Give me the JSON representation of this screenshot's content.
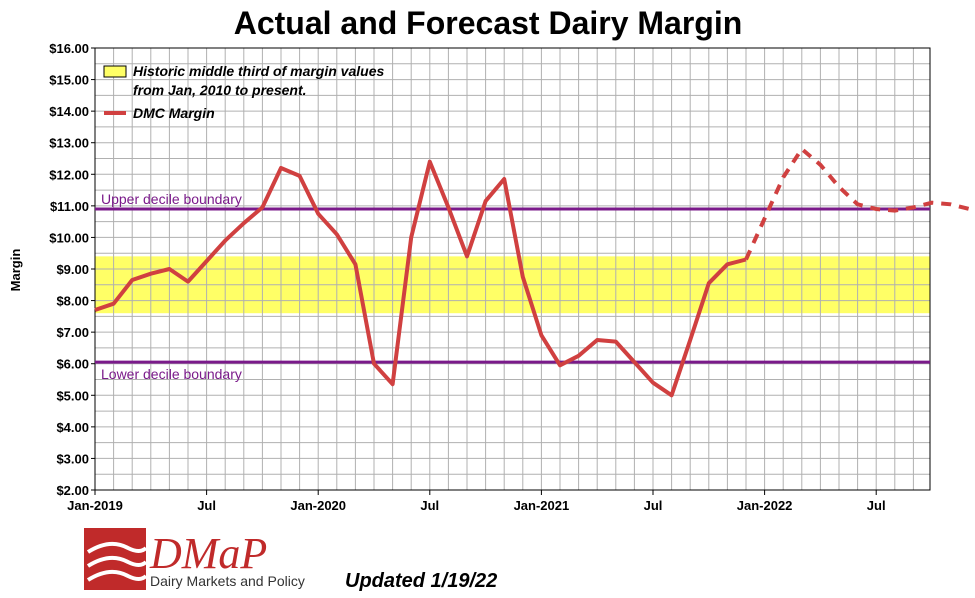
{
  "chart_data": {
    "type": "line",
    "title": "Actual and Forecast Dairy Margin",
    "ylabel": "Margin",
    "xlabel": "",
    "ylim": [
      2,
      16
    ],
    "y_ticks": [
      "$2.00",
      "$3.00",
      "$4.00",
      "$5.00",
      "$6.00",
      "$7.00",
      "$8.00",
      "$9.00",
      "$10.00",
      "$11.00",
      "$12.00",
      "$13.00",
      "$14.00",
      "$15.00",
      "$16.00"
    ],
    "x_ticks": [
      "Jan-2019",
      "Jul",
      "Jan-2020",
      "Jul",
      "Jan-2021",
      "Jul",
      "Jan-2022",
      "Jul"
    ],
    "grid": true,
    "legend_position": "top-left",
    "band": {
      "label": "Historic middle third of margin values",
      "label2": "from Jan, 2010 to present.",
      "range": [
        7.6,
        9.4
      ],
      "color": "#ffff66"
    },
    "upper_decile": {
      "label": "Upper decile boundary",
      "value": 10.9
    },
    "lower_decile": {
      "label": "Lower decile boundary",
      "value": 6.05
    },
    "series": [
      {
        "name": "DMC Margin",
        "color": "#d04040",
        "actual": {
          "x": [
            "2019-01",
            "2019-02",
            "2019-03",
            "2019-04",
            "2019-05",
            "2019-06",
            "2019-07",
            "2019-08",
            "2019-09",
            "2019-10",
            "2019-11",
            "2019-12",
            "2020-01",
            "2020-02",
            "2020-03",
            "2020-04",
            "2020-05",
            "2020-06",
            "2020-07",
            "2020-08",
            "2020-09",
            "2020-10",
            "2020-11",
            "2020-12",
            "2021-01",
            "2021-02",
            "2021-03",
            "2021-04",
            "2021-05",
            "2021-06",
            "2021-07",
            "2021-08",
            "2021-09",
            "2021-10",
            "2021-11",
            "2021-12"
          ],
          "y": [
            7.7,
            7.9,
            8.65,
            8.85,
            9.0,
            8.6,
            9.25,
            9.9,
            10.45,
            10.95,
            12.2,
            11.95,
            10.75,
            10.1,
            9.15,
            6.0,
            5.35,
            10.0,
            12.4,
            10.95,
            9.4,
            11.15,
            11.85,
            8.75,
            6.9,
            5.95,
            6.25,
            6.75,
            6.7,
            6.05,
            5.4,
            5.0,
            6.75,
            8.55,
            9.15,
            9.3
          ]
        },
        "forecast": {
          "x": [
            "2021-12",
            "2022-01",
            "2022-02",
            "2022-03",
            "2022-04",
            "2022-05",
            "2022-06",
            "2022-07",
            "2022-08",
            "2022-09",
            "2022-10",
            "2022-11",
            "2022-12"
          ],
          "y": [
            9.3,
            10.6,
            11.9,
            12.8,
            12.3,
            11.6,
            11.05,
            10.9,
            10.85,
            10.95,
            11.1,
            11.05,
            10.9
          ]
        }
      }
    ]
  },
  "legend": {
    "band_line1": "Historic middle third of margin values",
    "band_line2": "from Jan, 2010 to present.",
    "series_label": "DMC Margin"
  },
  "logo": {
    "name": "DMaP",
    "subtitle": "Dairy Markets and Policy"
  },
  "updated": "Updated 1/19/22"
}
